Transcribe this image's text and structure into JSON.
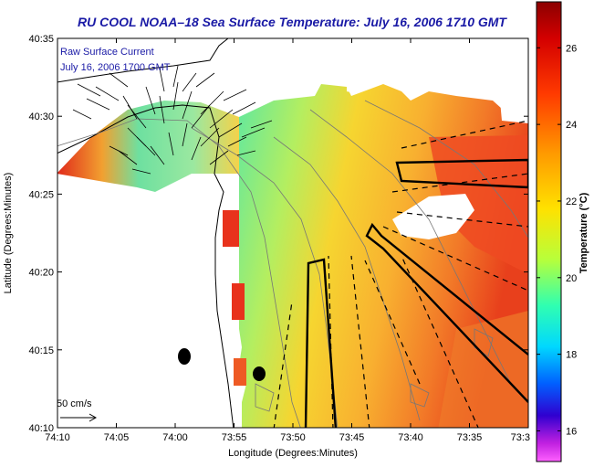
{
  "title": "RU COOL  NOAA–18  Sea Surface Temperature:  July 16, 2006 1710 GMT",
  "map": {
    "annotation_line1": "Raw Surface Current",
    "annotation_line2": "July 16, 2006 1700 GMT",
    "scale_label": "50 cm/s",
    "xlabel": "Longitude (Degrees:Minutes)",
    "ylabel": "Latitude (Degrees:Minutes)",
    "x_ticks": [
      "74:10",
      "74:05",
      "74:00",
      "73:55",
      "73:50",
      "73:45",
      "73:40",
      "73:35",
      "73:3"
    ],
    "y_ticks": [
      "40:35",
      "40:30",
      "40:25",
      "40:20",
      "40:15",
      "40:10"
    ]
  },
  "colorbar": {
    "label": "Temperature (°C)",
    "ticks": [
      "26",
      "24",
      "22",
      "20",
      "18",
      "16"
    ],
    "range": [
      15.2,
      27.2
    ]
  },
  "colors": {
    "land": "#ffffff",
    "title": "#1a1aa6",
    "warm": "#e82a1c",
    "mid": "#f5cf1e",
    "cool": "#5fe8a0"
  }
}
